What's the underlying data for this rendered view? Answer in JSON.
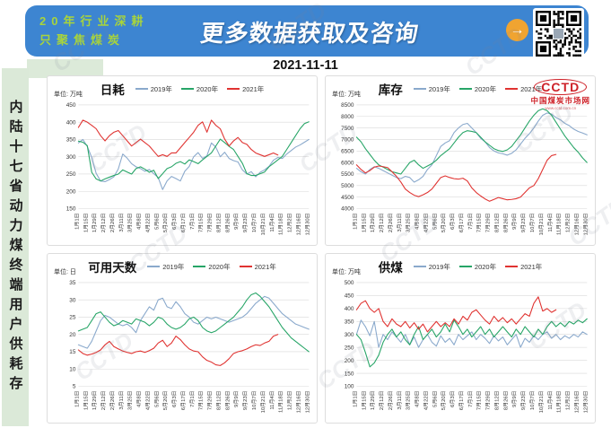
{
  "header": {
    "slogan_line1": "20年行业深耕",
    "slogan_line2": "只聚焦煤炭",
    "title": "更多数据获取及咨询",
    "arrow_icon": "→",
    "banner_bg": "#3d85d1",
    "slogan_color": "#a8d43c",
    "arrow_color": "#f0a431"
  },
  "date": "2021-11-11",
  "sidebar": {
    "vertical_title": "内陆十七省动力煤终端用户供耗存"
  },
  "logo": {
    "brand": "CCTD",
    "site_name": "中国煤炭市场网",
    "url_text": "www.cctd.com.cn",
    "color": "#ce2128"
  },
  "watermark": {
    "text": "CCTD"
  },
  "chart_data": [
    {
      "type": "line",
      "title": "日耗",
      "unit_label": "单位: 万吨",
      "ylim": [
        150,
        450
      ],
      "yticks": [
        150,
        200,
        250,
        300,
        350,
        400,
        450
      ],
      "grid": true,
      "legend_position": "top",
      "n_points": 53,
      "x_label_every": 2,
      "x_labels": [
        "1月1日",
        "1月15日",
        "1月29日",
        "2月12日",
        "2月26日",
        "3月11日",
        "3月25日",
        "4月8日",
        "4月22日",
        "5月6日",
        "5月20日",
        "6月3日",
        "6月17日",
        "7月1日",
        "7月15日",
        "7月29日",
        "8月12日",
        "8月26日",
        "9月9日",
        "9月23日",
        "10月7日",
        "10月21日",
        "11月4日",
        "11月18日",
        "12月2日",
        "12月16日",
        "12月30日"
      ],
      "series": [
        {
          "name": "2019年",
          "color": "#8aa9cc",
          "values": [
            340,
            350,
            330,
            298,
            252,
            230,
            228,
            234,
            242,
            265,
            308,
            296,
            280,
            271,
            266,
            258,
            263,
            251,
            240,
            205,
            230,
            243,
            237,
            230,
            258,
            272,
            300,
            312,
            295,
            303,
            340,
            328,
            300,
            313,
            295,
            289,
            285,
            262,
            250,
            257,
            242,
            255,
            262,
            272,
            290,
            298,
            295,
            308,
            318,
            328,
            334,
            342,
            350
          ]
        },
        {
          "name": "2020年",
          "color": "#27a567",
          "values": [
            345,
            342,
            332,
            255,
            236,
            230,
            236,
            241,
            246,
            250,
            262,
            256,
            250,
            266,
            271,
            264,
            255,
            261,
            237,
            251,
            266,
            271,
            281,
            286,
            279,
            291,
            286,
            280,
            291,
            301,
            311,
            331,
            351,
            341,
            330,
            321,
            301,
            281,
            251,
            246,
            246,
            251,
            256,
            271,
            281,
            291,
            301,
            321,
            341,
            361,
            381,
            396,
            401
          ]
        },
        {
          "name": "2021年",
          "color": "#e03331",
          "values": [
            385,
            406,
            400,
            391,
            381,
            361,
            346,
            361,
            371,
            376,
            361,
            346,
            331,
            341,
            351,
            341,
            331,
            316,
            301,
            306,
            301,
            311,
            311,
            326,
            341,
            356,
            371,
            391,
            401,
            371,
            406,
            391,
            381,
            351,
            331,
            346,
            356,
            341,
            336,
            321,
            311,
            306,
            301,
            306,
            311,
            305,
            null,
            null,
            null,
            null,
            null,
            null,
            null
          ]
        }
      ]
    },
    {
      "type": "line",
      "title": "库存",
      "unit_label": "单位: 万吨",
      "ylim": [
        4000,
        8500
      ],
      "yticks": [
        4000,
        4500,
        5000,
        5500,
        6000,
        6500,
        7000,
        7500,
        8000,
        8500
      ],
      "grid": true,
      "legend_position": "top",
      "n_points": 53,
      "x_label_every": 2,
      "x_labels": [
        "1月1日",
        "1月15日",
        "1月29日",
        "2月12日",
        "2月26日",
        "3月11日",
        "3月25日",
        "4月8日",
        "4月22日",
        "5月6日",
        "5月20日",
        "6月3日",
        "6月17日",
        "7月1日",
        "7月15日",
        "7月29日",
        "8月12日",
        "8月26日",
        "9月9日",
        "9月23日",
        "10月7日",
        "10月21日",
        "11月4日",
        "11月18日",
        "12月2日",
        "12月16日",
        "12月30日"
      ],
      "series": [
        {
          "name": "2019年",
          "color": "#8aa9cc",
          "values": [
            5750,
            5600,
            5500,
            5700,
            5820,
            5750,
            5650,
            5550,
            5450,
            5350,
            5300,
            5400,
            5350,
            5150,
            5250,
            5400,
            5700,
            5900,
            6300,
            6700,
            6850,
            6950,
            7300,
            7500,
            7650,
            7700,
            7500,
            7300,
            7050,
            6900,
            6650,
            6500,
            6420,
            6380,
            6320,
            6400,
            6550,
            6800,
            7050,
            7250,
            7500,
            7800,
            8050,
            8150,
            8100,
            7950,
            7850,
            7700,
            7600,
            7450,
            7350,
            7280,
            7200
          ]
        },
        {
          "name": "2020年",
          "color": "#27a567",
          "values": [
            7100,
            6900,
            6600,
            6350,
            6100,
            5900,
            5800,
            5700,
            5600,
            5550,
            5500,
            5750,
            6000,
            6100,
            5900,
            5750,
            5850,
            5950,
            6100,
            6300,
            6450,
            6600,
            6850,
            7100,
            7300,
            7380,
            7350,
            7300,
            7100,
            6900,
            6750,
            6600,
            6520,
            6480,
            6550,
            6700,
            6950,
            7200,
            7500,
            7800,
            8050,
            8250,
            8330,
            8250,
            8050,
            7750,
            7450,
            7150,
            6900,
            6650,
            6450,
            6200,
            6000
          ]
        },
        {
          "name": "2021年",
          "color": "#e03331",
          "values": [
            5900,
            5700,
            5550,
            5650,
            5800,
            5850,
            5820,
            5780,
            5600,
            5400,
            5150,
            4850,
            4700,
            4580,
            4520,
            4600,
            4700,
            4850,
            5100,
            5350,
            5420,
            5350,
            5300,
            5280,
            5320,
            5200,
            4900,
            4700,
            4550,
            4420,
            4320,
            4400,
            4480,
            4430,
            4380,
            4400,
            4430,
            4500,
            4700,
            4900,
            5000,
            5300,
            5700,
            6100,
            6300,
            6350,
            null,
            null,
            null,
            null,
            null,
            null,
            null
          ]
        }
      ]
    },
    {
      "type": "line",
      "title": "可用天数",
      "unit_label": "单位: 日",
      "ylim": [
        5,
        35
      ],
      "yticks": [
        5,
        10,
        15,
        20,
        25,
        30,
        35
      ],
      "grid": true,
      "legend_position": "top",
      "n_points": 53,
      "x_label_every": 2,
      "x_labels": [
        "1月1日",
        "1月15日",
        "1月29日",
        "2月12日",
        "2月26日",
        "3月11日",
        "3月25日",
        "4月8日",
        "4月22日",
        "5月6日",
        "5月20日",
        "6月3日",
        "6月17日",
        "7月1日",
        "7月15日",
        "7月29日",
        "8月12日",
        "8月26日",
        "9月9日",
        "9月23日",
        "10月7日",
        "10月21日",
        "11月4日",
        "11月18日",
        "12月2日",
        "12月16日",
        "12月30日"
      ],
      "series": [
        {
          "name": "2019年",
          "color": "#8aa9cc",
          "values": [
            17,
            16.5,
            16,
            18,
            21,
            24,
            25.5,
            25,
            24,
            23,
            22.5,
            23,
            22,
            20.5,
            24,
            26,
            28,
            27,
            30,
            30.5,
            28,
            27.5,
            29.5,
            28,
            26,
            25,
            23.5,
            23,
            24,
            25,
            24.5,
            25,
            24.5,
            24,
            23.5,
            24,
            24.5,
            25,
            26,
            27.5,
            29,
            30,
            31,
            30.5,
            29,
            27.5,
            26,
            25,
            24,
            23,
            22.5,
            22,
            21.5
          ]
        },
        {
          "name": "2020年",
          "color": "#27a567",
          "values": [
            21,
            21.5,
            22,
            24,
            26,
            26.5,
            25,
            23.5,
            22.5,
            23,
            24,
            23.5,
            23,
            24.5,
            24,
            23.5,
            22.5,
            23.5,
            25,
            24.5,
            23,
            22,
            21.5,
            22,
            23,
            24.5,
            25,
            24,
            22,
            21,
            20.5,
            21,
            22,
            23,
            24,
            25,
            26.5,
            28,
            30,
            31.5,
            32,
            31,
            29.5,
            28,
            26,
            24,
            22,
            20.5,
            19,
            18,
            17,
            16,
            15
          ]
        },
        {
          "name": "2021年",
          "color": "#e03331",
          "values": [
            15.5,
            14.5,
            14,
            14.3,
            14.8,
            15.5,
            17,
            18,
            16.5,
            15.8,
            15.2,
            14.8,
            14.5,
            15,
            15.2,
            14.8,
            15.3,
            16,
            17.5,
            18.3,
            16.5,
            17.5,
            19.5,
            18.5,
            17,
            15.8,
            15.2,
            15,
            13.5,
            12.5,
            12,
            11.2,
            11,
            11.8,
            13,
            14.5,
            15,
            15.3,
            15.8,
            16.5,
            17,
            16.8,
            17.5,
            18,
            19.5,
            20,
            null,
            null,
            null,
            null,
            null,
            null,
            null
          ]
        }
      ]
    },
    {
      "type": "line",
      "title": "供煤",
      "unit_label": "单位: 万吨",
      "ylim": [
        100,
        500
      ],
      "yticks": [
        100,
        150,
        200,
        250,
        300,
        350,
        400,
        450,
        500
      ],
      "grid": true,
      "legend_position": "top",
      "n_points": 53,
      "x_label_every": 2,
      "x_labels": [
        "1月1日",
        "1月15日",
        "1月29日",
        "2月12日",
        "2月26日",
        "3月11日",
        "3月25日",
        "4月8日",
        "4月22日",
        "5月6日",
        "5月20日",
        "6月3日",
        "6月17日",
        "7月1日",
        "7月15日",
        "7月29日",
        "8月12日",
        "8月26日",
        "9月9日",
        "9月23日",
        "10月7日",
        "10月21日",
        "11月4日",
        "11月18日",
        "12月2日",
        "12月16日",
        "12月30日"
      ],
      "series": [
        {
          "name": "2019年",
          "color": "#8aa9cc",
          "values": [
            300,
            355,
            330,
            295,
            350,
            250,
            300,
            280,
            310,
            290,
            270,
            300,
            260,
            290,
            250,
            280,
            300,
            270,
            255,
            295,
            270,
            285,
            260,
            300,
            280,
            295,
            310,
            280,
            300,
            285,
            265,
            295,
            275,
            290,
            260,
            280,
            300,
            250,
            285,
            270,
            295,
            280,
            300,
            310,
            285,
            300,
            280,
            295,
            285,
            300,
            290,
            310,
            300
          ]
        },
        {
          "name": "2020年",
          "color": "#27a567",
          "values": [
            300,
            280,
            230,
            175,
            190,
            220,
            270,
            300,
            320,
            290,
            310,
            280,
            260,
            300,
            330,
            280,
            300,
            320,
            290,
            310,
            340,
            310,
            355,
            330,
            300,
            320,
            290,
            310,
            330,
            300,
            320,
            290,
            310,
            330,
            310,
            290,
            320,
            300,
            330,
            310,
            290,
            320,
            300,
            330,
            350,
            330,
            345,
            330,
            350,
            340,
            355,
            345,
            360
          ]
        },
        {
          "name": "2021年",
          "color": "#e03331",
          "values": [
            395,
            420,
            430,
            400,
            385,
            400,
            350,
            330,
            360,
            340,
            330,
            350,
            325,
            345,
            320,
            340,
            310,
            330,
            350,
            330,
            345,
            330,
            360,
            340,
            370,
            355,
            385,
            395,
            375,
            355,
            340,
            370,
            350,
            365,
            345,
            360,
            340,
            360,
            380,
            370,
            420,
            445,
            390,
            400,
            385,
            395,
            null,
            null,
            null,
            null,
            null,
            null,
            null
          ]
        }
      ]
    }
  ]
}
